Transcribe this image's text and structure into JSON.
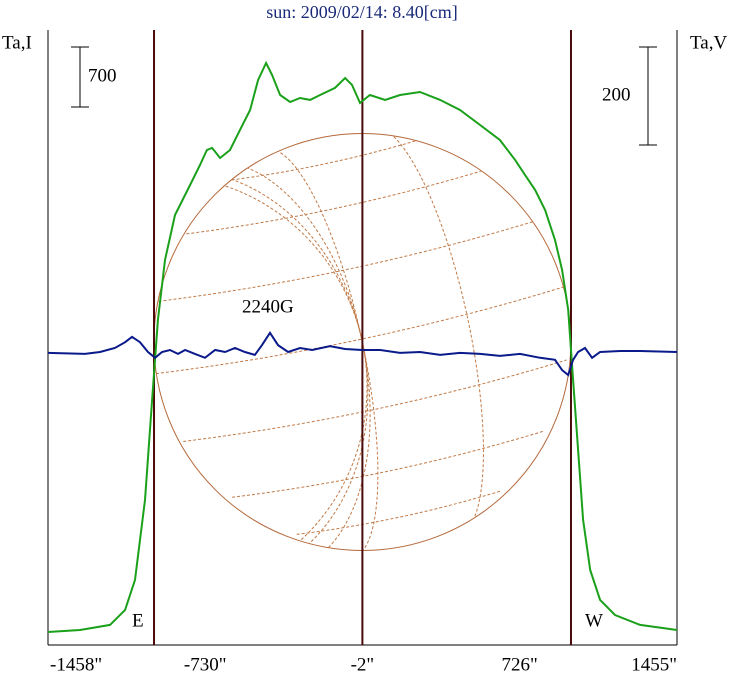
{
  "chart_data": {
    "type": "line",
    "title": "sun: 2009/02/14: 8.40[cm]",
    "y_label": "Ta,I",
    "y2_label": "Ta,V",
    "annotation": "2240G",
    "east_label": "E",
    "west_label": "W",
    "xlim": [
      -1458,
      1455
    ],
    "xticks": [
      {
        "value": -1458,
        "label": "-1458\""
      },
      {
        "value": -730,
        "label": "-730\""
      },
      {
        "value": -2,
        "label": "-2\""
      },
      {
        "value": 726,
        "label": "726\""
      },
      {
        "value": 1455,
        "label": "1455\""
      }
    ],
    "ylim": [
      -152,
      7023
    ],
    "y2lim": [
      -596,
      659
    ],
    "i_scale": 700,
    "v_scale": 200,
    "limb": [
      -967,
      964
    ],
    "center": -2,
    "series": [
      {
        "name": "I",
        "color": "#1aa01a",
        "x": [
          -1458,
          -1310,
          -1171,
          -1101,
          -1055,
          -1009,
          -976,
          -949,
          -916,
          -870,
          -800,
          -754,
          -722,
          -698,
          -661,
          -615,
          -569,
          -522,
          -485,
          -448,
          -420,
          -383,
          -337,
          -291,
          -244,
          -198,
          -129,
          -82,
          -50,
          -13,
          33,
          103,
          172,
          265,
          358,
          450,
          543,
          635,
          705,
          751,
          798,
          844,
          890,
          923,
          951,
          974,
          997,
          1020,
          1053,
          1099,
          1168,
          1284,
          1455
        ],
        "values": [
          0,
          23,
          82,
          257,
          607,
          1540,
          2707,
          3640,
          4340,
          4865,
          5215,
          5448,
          5623,
          5647,
          5530,
          5623,
          5857,
          6090,
          6440,
          6638,
          6498,
          6265,
          6183,
          6230,
          6207,
          6265,
          6347,
          6463,
          6382,
          6172,
          6265,
          6207,
          6265,
          6300,
          6207,
          6090,
          5915,
          5740,
          5507,
          5332,
          5157,
          4923,
          4573,
          4223,
          3757,
          2940,
          2123,
          1307,
          723,
          373,
          198,
          82,
          23
        ]
      },
      {
        "name": "V",
        "color": "#0a1a8a",
        "axis": "y2",
        "x": [
          -1458,
          -1287,
          -1217,
          -1148,
          -1101,
          -1069,
          -1032,
          -995,
          -962,
          -930,
          -893,
          -856,
          -823,
          -777,
          -731,
          -684,
          -638,
          -592,
          -546,
          -500,
          -467,
          -430,
          -393,
          -346,
          -291,
          -235,
          -152,
          -82,
          -4,
          80,
          172,
          265,
          358,
          450,
          543,
          635,
          728,
          821,
          890,
          923,
          951,
          974,
          997,
          1029,
          1062,
          1099,
          1192,
          1284,
          1455
        ],
        "values": [
          0,
          -2,
          2,
          10,
          22,
          33,
          22,
          2,
          -10,
          2,
          6,
          -2,
          6,
          -2,
          -10,
          6,
          2,
          10,
          2,
          -4,
          16,
          41,
          16,
          2,
          10,
          6,
          14,
          8,
          6,
          6,
          0,
          2,
          -4,
          0,
          -2,
          -6,
          -2,
          -10,
          -14,
          -35,
          -45,
          -14,
          2,
          10,
          -10,
          2,
          4,
          4,
          2
        ]
      }
    ]
  }
}
